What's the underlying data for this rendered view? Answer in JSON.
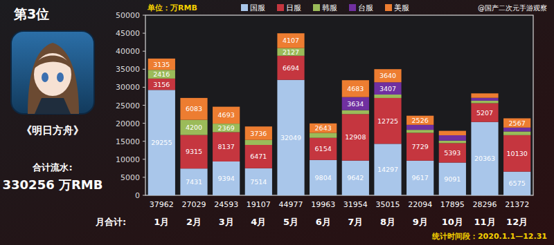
{
  "page": {
    "rank": "第3位",
    "game": "《明日方舟》",
    "total_label": "合计流水:",
    "total_value": "330256 万RMB"
  },
  "chart_data": {
    "type": "bar",
    "stacked": true,
    "data_labels": true,
    "legend": "top",
    "grid": false,
    "annotations": [
      "单位：万RMB",
      "@国产二次元手游观察",
      "统计时间段：2020.1.1—12.31"
    ],
    "categories": [
      "1月",
      "2月",
      "3月",
      "4月",
      "5月",
      "6月",
      "7月",
      "8月",
      "9月",
      "10月",
      "11月",
      "12月"
    ],
    "series": [
      {
        "name": "国服",
        "color": "#a9c6ea",
        "values": [
          29255,
          7431,
          9394,
          7514,
          32049,
          9804,
          9642,
          14297,
          9617,
          9091,
          20363,
          6575
        ]
      },
      {
        "name": "日服",
        "color": "#c5363f",
        "values": [
          3156,
          9315,
          8137,
          6471,
          6694,
          6154,
          12908,
          12725,
          7729,
          5393,
          5207,
          10130
        ]
      },
      {
        "name": "韩服",
        "color": "#9bbb59",
        "values": [
          2416,
          4200,
          2369,
          1386,
          2127,
          1362,
          1087,
          946,
          828,
          689,
          691,
          1022
        ]
      },
      {
        "name": "台服",
        "color": "#7030a0",
        "values": [
          0,
          0,
          0,
          0,
          0,
          0,
          3634,
          3407,
          1394,
          1496,
          800,
          1078
        ]
      },
      {
        "name": "美服",
        "color": "#ed7d31",
        "values": [
          3135,
          6083,
          4693,
          3736,
          4107,
          2643,
          4683,
          3640,
          2526,
          1226,
          1235,
          2567
        ]
      }
    ],
    "totals_label": "月合计:",
    "totals": [
      37962,
      27029,
      24593,
      19107,
      44977,
      19963,
      31954,
      35015,
      22094,
      17895,
      28296,
      21372
    ],
    "ylim": [
      0,
      50000
    ],
    "yticks": [
      0,
      5000,
      10000,
      15000,
      20000,
      25000,
      30000,
      35000,
      40000,
      45000,
      50000
    ]
  }
}
